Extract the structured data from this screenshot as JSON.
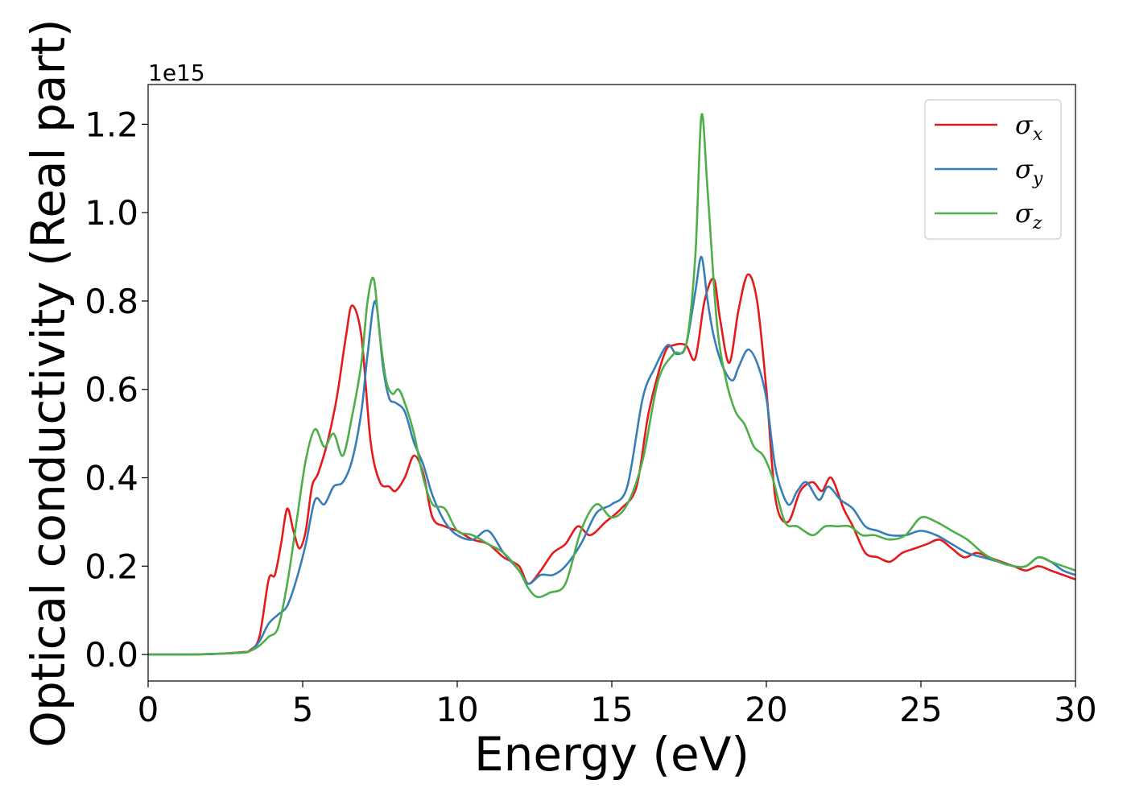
{
  "chart_data": {
    "type": "line",
    "title": "",
    "xlabel": "Energy (eV)",
    "ylabel": "Optical conductivity (Real part)",
    "y_offset_label": "1e15",
    "xlim": [
      0,
      30
    ],
    "ylim": [
      -0.06,
      1.29
    ],
    "x_ticks": [
      0,
      5,
      10,
      15,
      20,
      25,
      30
    ],
    "y_ticks": [
      0.0,
      0.2,
      0.4,
      0.6,
      0.8,
      1.0,
      1.2
    ],
    "x_tick_labels": [
      "0",
      "5",
      "10",
      "15",
      "20",
      "25",
      "30"
    ],
    "y_tick_labels": [
      "0.0",
      "0.2",
      "0.4",
      "0.6",
      "0.8",
      "1.0",
      "1.2"
    ],
    "grid": false,
    "legend_position": "top-right",
    "series": [
      {
        "name": "σx",
        "name_base": "σ",
        "name_sub": "x",
        "color": "#e41a1c",
        "x": [
          0,
          1,
          2,
          3,
          3.3,
          3.6,
          3.9,
          4.1,
          4.3,
          4.5,
          4.7,
          4.9,
          5.1,
          5.3,
          5.5,
          5.8,
          6.1,
          6.4,
          6.6,
          6.9,
          7.2,
          7.5,
          7.8,
          8.0,
          8.3,
          8.6,
          8.9,
          9.2,
          9.6,
          10,
          10.5,
          11,
          11.5,
          12,
          12.3,
          12.7,
          13.1,
          13.5,
          13.9,
          14.3,
          14.8,
          15.3,
          15.8,
          16.2,
          16.7,
          17.0,
          17.4,
          17.7,
          18.0,
          18.3,
          18.5,
          18.8,
          19.1,
          19.4,
          19.7,
          20.0,
          20.3,
          20.7,
          21.1,
          21.5,
          21.8,
          22.1,
          22.5,
          22.8,
          23.2,
          23.6,
          24.0,
          24.4,
          24.8,
          25.2,
          25.6,
          26.0,
          26.4,
          26.8,
          27.2,
          27.6,
          28.0,
          28.4,
          28.8,
          29.2,
          29.6,
          30
        ],
        "y": [
          0,
          0,
          0.001,
          0.005,
          0.01,
          0.04,
          0.17,
          0.18,
          0.25,
          0.33,
          0.28,
          0.24,
          0.28,
          0.38,
          0.41,
          0.48,
          0.58,
          0.72,
          0.79,
          0.72,
          0.48,
          0.39,
          0.38,
          0.37,
          0.4,
          0.45,
          0.41,
          0.31,
          0.29,
          0.28,
          0.26,
          0.25,
          0.22,
          0.2,
          0.16,
          0.19,
          0.23,
          0.25,
          0.29,
          0.27,
          0.3,
          0.33,
          0.38,
          0.55,
          0.68,
          0.7,
          0.7,
          0.67,
          0.8,
          0.85,
          0.76,
          0.66,
          0.78,
          0.86,
          0.8,
          0.6,
          0.35,
          0.3,
          0.37,
          0.39,
          0.37,
          0.4,
          0.33,
          0.29,
          0.23,
          0.22,
          0.21,
          0.23,
          0.24,
          0.25,
          0.26,
          0.24,
          0.22,
          0.23,
          0.22,
          0.21,
          0.2,
          0.19,
          0.2,
          0.19,
          0.18,
          0.17
        ]
      },
      {
        "name": "σy",
        "name_base": "σ",
        "name_sub": "y",
        "color": "#377eb8",
        "x": [
          0,
          1,
          2,
          3,
          3.3,
          3.6,
          3.9,
          4.2,
          4.5,
          4.8,
          5.1,
          5.4,
          5.7,
          6.0,
          6.3,
          6.6,
          6.9,
          7.1,
          7.35,
          7.6,
          7.8,
          8.0,
          8.3,
          8.6,
          8.9,
          9.2,
          9.6,
          10,
          10.5,
          11,
          11.5,
          12,
          12.3,
          12.7,
          13.1,
          13.5,
          14.0,
          14.5,
          15.0,
          15.5,
          16.0,
          16.4,
          16.8,
          17.1,
          17.4,
          17.7,
          17.9,
          18.1,
          18.3,
          18.6,
          18.9,
          19.1,
          19.4,
          19.7,
          20.0,
          20.3,
          20.7,
          21.0,
          21.3,
          21.7,
          22.0,
          22.4,
          22.8,
          23.2,
          23.6,
          24.0,
          24.5,
          25.0,
          25.5,
          26.0,
          26.5,
          27.0,
          27.5,
          28.0,
          28.4,
          28.8,
          29.2,
          29.6,
          30
        ],
        "y": [
          0,
          0,
          0.001,
          0.004,
          0.008,
          0.03,
          0.07,
          0.09,
          0.11,
          0.17,
          0.25,
          0.35,
          0.34,
          0.38,
          0.39,
          0.44,
          0.55,
          0.68,
          0.8,
          0.65,
          0.58,
          0.57,
          0.55,
          0.48,
          0.43,
          0.36,
          0.3,
          0.27,
          0.26,
          0.28,
          0.23,
          0.19,
          0.16,
          0.18,
          0.18,
          0.2,
          0.25,
          0.32,
          0.34,
          0.38,
          0.58,
          0.65,
          0.7,
          0.68,
          0.7,
          0.82,
          0.9,
          0.8,
          0.72,
          0.65,
          0.62,
          0.65,
          0.69,
          0.66,
          0.58,
          0.42,
          0.34,
          0.37,
          0.39,
          0.35,
          0.38,
          0.35,
          0.33,
          0.29,
          0.28,
          0.27,
          0.27,
          0.28,
          0.27,
          0.25,
          0.23,
          0.22,
          0.21,
          0.2,
          0.2,
          0.22,
          0.21,
          0.19,
          0.18
        ]
      },
      {
        "name": "σz",
        "name_base": "σ",
        "name_sub": "z",
        "color": "#4daf4a",
        "x": [
          0,
          1,
          2,
          3,
          3.3,
          3.6,
          3.9,
          4.2,
          4.5,
          4.8,
          5.1,
          5.4,
          5.7,
          6.0,
          6.3,
          6.6,
          6.9,
          7.1,
          7.3,
          7.5,
          7.7,
          7.9,
          8.1,
          8.3,
          8.6,
          8.9,
          9.2,
          9.6,
          10,
          10.5,
          11,
          11.5,
          12,
          12.3,
          12.6,
          13.0,
          13.5,
          14.0,
          14.5,
          15.0,
          15.5,
          16.0,
          16.5,
          17.0,
          17.4,
          17.7,
          17.9,
          18.1,
          18.4,
          18.7,
          19.0,
          19.3,
          19.6,
          19.9,
          20.2,
          20.6,
          21.0,
          21.5,
          21.9,
          22.3,
          22.7,
          23.1,
          23.5,
          24.0,
          24.5,
          25.0,
          25.5,
          26.0,
          26.5,
          27.0,
          27.5,
          28.0,
          28.4,
          28.8,
          29.2,
          29.6,
          30
        ],
        "y": [
          0,
          0,
          0.001,
          0.004,
          0.008,
          0.02,
          0.04,
          0.06,
          0.16,
          0.3,
          0.44,
          0.51,
          0.47,
          0.5,
          0.45,
          0.54,
          0.66,
          0.8,
          0.85,
          0.72,
          0.62,
          0.59,
          0.6,
          0.57,
          0.5,
          0.4,
          0.34,
          0.33,
          0.28,
          0.27,
          0.25,
          0.23,
          0.19,
          0.15,
          0.13,
          0.14,
          0.16,
          0.28,
          0.34,
          0.31,
          0.34,
          0.44,
          0.62,
          0.68,
          0.7,
          0.9,
          1.22,
          1.05,
          0.75,
          0.62,
          0.55,
          0.52,
          0.47,
          0.45,
          0.4,
          0.3,
          0.29,
          0.27,
          0.29,
          0.29,
          0.29,
          0.27,
          0.27,
          0.26,
          0.27,
          0.31,
          0.3,
          0.28,
          0.26,
          0.23,
          0.21,
          0.2,
          0.2,
          0.22,
          0.21,
          0.2,
          0.19
        ]
      }
    ]
  }
}
